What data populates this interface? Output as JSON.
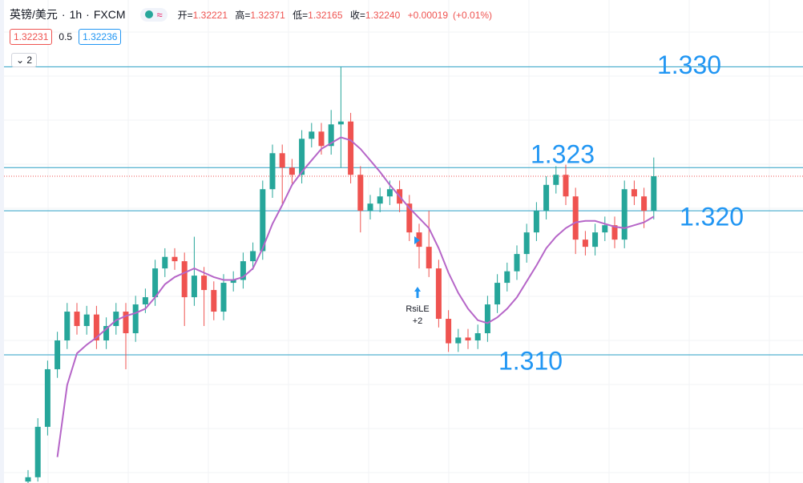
{
  "header": {
    "symbol": "英镑/美元",
    "interval": "1h",
    "source": "FXCM",
    "open": {
      "label": "开=",
      "value": "1.32221"
    },
    "high": {
      "label": "高=",
      "value": "1.32371"
    },
    "low": {
      "label": "低=",
      "value": "1.32165"
    },
    "close": {
      "label": "收=",
      "value": "1.32240"
    },
    "change": "+0.00019",
    "change_pct": "(+0.01%)"
  },
  "trade": {
    "sell": "1.32231",
    "spread": "0.5",
    "buy": "1.32236"
  },
  "indicator_toggle": "2",
  "chart_data": {
    "type": "candlestick",
    "up_color": "#26a69a",
    "down_color": "#ef5350",
    "ylim": [
      1.3011,
      1.3313
    ],
    "open": [
      1.3012,
      1.3015,
      1.305,
      1.309,
      1.311,
      1.313,
      1.312,
      1.3128,
      1.311,
      1.312,
      1.313,
      1.3115,
      1.3135,
      1.314,
      1.316,
      1.3168,
      1.3165,
      1.314,
      1.3155,
      1.3145,
      1.313,
      1.315,
      1.3152,
      1.3165,
      1.3172,
      1.3215,
      1.324,
      1.323,
      1.3225,
      1.325,
      1.3255,
      1.3245,
      1.326,
      1.3262,
      1.3225,
      1.32,
      1.3205,
      1.321,
      1.3215,
      1.3205,
      1.3185,
      1.3175,
      1.316,
      1.3125,
      1.3108,
      1.3112,
      1.311,
      1.3115,
      1.3135,
      1.315,
      1.3158,
      1.317,
      1.3185,
      1.32,
      1.3218,
      1.3225,
      1.321,
      1.318,
      1.3175,
      1.3185,
      1.319,
      1.318,
      1.3215,
      1.321,
      1.32
    ],
    "high": [
      1.302,
      1.3056,
      1.3096,
      1.3116,
      1.3136,
      1.3136,
      1.3134,
      1.3134,
      1.3126,
      1.3136,
      1.3136,
      1.3141,
      1.3146,
      1.3166,
      1.3174,
      1.3174,
      1.3171,
      1.3182,
      1.3161,
      1.3151,
      1.3156,
      1.3158,
      1.3171,
      1.3178,
      1.3221,
      1.3246,
      1.3246,
      1.3236,
      1.3256,
      1.3261,
      1.3261,
      1.327,
      1.33,
      1.3268,
      1.3231,
      1.3211,
      1.3216,
      1.3221,
      1.3221,
      1.3211,
      1.3191,
      1.32,
      1.3166,
      1.3131,
      1.3118,
      1.3118,
      1.3121,
      1.3141,
      1.3156,
      1.3164,
      1.3176,
      1.3191,
      1.3206,
      1.3224,
      1.3231,
      1.3232,
      1.3216,
      1.3186,
      1.3191,
      1.3196,
      1.3196,
      1.3221,
      1.3221,
      1.3216,
      1.3237
    ],
    "low": [
      1.3011,
      1.3012,
      1.3044,
      1.3084,
      1.3104,
      1.3114,
      1.3114,
      1.3104,
      1.3104,
      1.3114,
      1.309,
      1.3109,
      1.3129,
      1.3134,
      1.3154,
      1.3159,
      1.312,
      1.3134,
      1.312,
      1.3124,
      1.3124,
      1.3144,
      1.3146,
      1.3159,
      1.3166,
      1.3209,
      1.3205,
      1.3219,
      1.3219,
      1.3244,
      1.3239,
      1.3239,
      1.323,
      1.3219,
      1.3185,
      1.3194,
      1.3199,
      1.3204,
      1.3199,
      1.3179,
      1.316,
      1.3154,
      1.3119,
      1.3102,
      1.3102,
      1.3104,
      1.3104,
      1.3109,
      1.3129,
      1.3144,
      1.3152,
      1.3164,
      1.3179,
      1.3194,
      1.3212,
      1.3204,
      1.317,
      1.3169,
      1.3169,
      1.3179,
      1.3174,
      1.3174,
      1.3204,
      1.3188,
      1.3194
    ],
    "close": [
      1.3015,
      1.305,
      1.309,
      1.311,
      1.313,
      1.312,
      1.3128,
      1.311,
      1.312,
      1.313,
      1.3115,
      1.3135,
      1.314,
      1.316,
      1.3168,
      1.3165,
      1.314,
      1.3155,
      1.3145,
      1.313,
      1.315,
      1.3152,
      1.3165,
      1.3172,
      1.3215,
      1.324,
      1.323,
      1.3225,
      1.325,
      1.3255,
      1.3245,
      1.326,
      1.3262,
      1.3225,
      1.32,
      1.3205,
      1.321,
      1.3215,
      1.3205,
      1.3185,
      1.3175,
      1.316,
      1.3125,
      1.3108,
      1.3112,
      1.311,
      1.3115,
      1.3135,
      1.315,
      1.3158,
      1.317,
      1.3185,
      1.32,
      1.3218,
      1.3225,
      1.321,
      1.318,
      1.3175,
      1.3185,
      1.319,
      1.318,
      1.3215,
      1.321,
      1.32,
      1.3224
    ],
    "ma": {
      "color": "#b666c8",
      "values": [
        null,
        null,
        null,
        1.3029,
        1.3079,
        1.3101,
        1.3107,
        1.3112,
        1.3118,
        1.3124,
        1.3127,
        1.3129,
        1.3132,
        1.314,
        1.3149,
        1.3154,
        1.3157,
        1.316,
        1.3157,
        1.3154,
        1.3152,
        1.3152,
        1.3154,
        1.316,
        1.3174,
        1.3191,
        1.3204,
        1.3218,
        1.3227,
        1.3235,
        1.3243,
        1.3247,
        1.3251,
        1.3249,
        1.3243,
        1.3235,
        1.3227,
        1.3218,
        1.321,
        1.3202,
        1.3195,
        1.3188,
        1.3174,
        1.3157,
        1.3143,
        1.3132,
        1.3124,
        1.3122,
        1.3126,
        1.3132,
        1.314,
        1.3151,
        1.3162,
        1.3174,
        1.3182,
        1.3188,
        1.3192,
        1.3193,
        1.3193,
        1.3191,
        1.3189,
        1.3188,
        1.319,
        1.3192,
        1.3196
      ]
    },
    "levels": [
      {
        "value": 1.33,
        "label": "1.330"
      },
      1.323,
      {
        "value": 1.32,
        "label": "1.320"
      },
      {
        "value": 1.31,
        "label": "1.310"
      }
    ],
    "level_color": "#2a9fc4",
    "level_label_color": "#2196f3",
    "annotation": {
      "text": "RsiLE",
      "sub": "+2"
    }
  }
}
